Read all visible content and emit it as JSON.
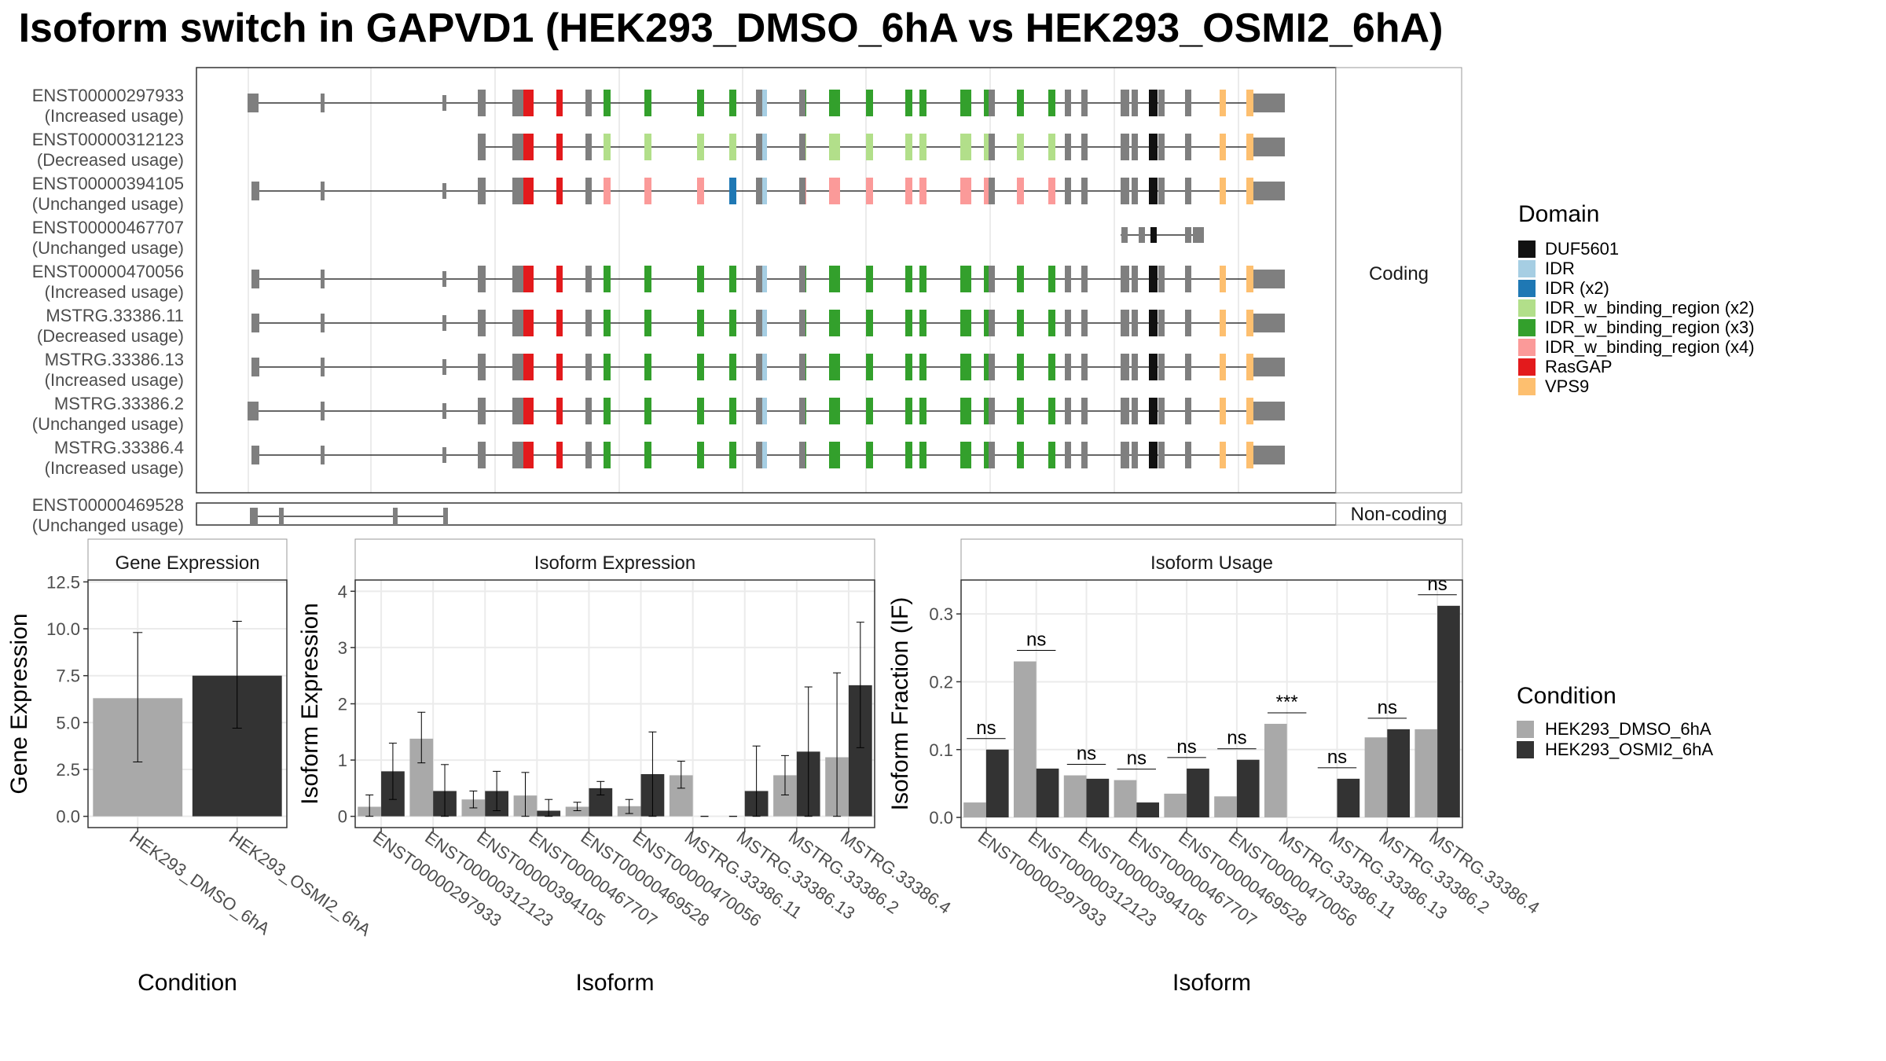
{
  "title": "Isoform switch in GAPVD1 (HEK293_DMSO_6hA vs HEK293_OSMI2_6hA)",
  "colors": {
    "intron": "#333333",
    "other": "#7f7f7f",
    "DUF5601": "#111111",
    "IDR": "#a6cee3",
    "IDR (x2)": "#1f78b4",
    "IDR_w_binding_region (x2)": "#b2df8a",
    "IDR_w_binding_region (x3)": "#33a02c",
    "IDR_w_binding_region (x4)": "#fb9a99",
    "RasGAP": "#e31a1c",
    "VPS9": "#fdbf6f",
    "cond1": "#a9a9a9",
    "cond2": "#333333",
    "panelBorder": "#333333",
    "grid": "#ebebeb"
  },
  "transcripts": {
    "facet_coding": "Coding",
    "facet_noncoding": "Non-coding",
    "coding": [
      {
        "id": "ENST00000297933",
        "usage": "(Increased usage)",
        "start": 0,
        "tail": 0,
        "five": 1
      },
      {
        "id": "ENST00000312123",
        "usage": "(Decreased usage)",
        "start": 3,
        "tail": 0,
        "five": 0
      },
      {
        "id": "ENST00000394105",
        "usage": "(Unchanged usage)",
        "start": 0,
        "tail": 0,
        "five": 0
      },
      {
        "id": "ENST00000467707",
        "usage": "(Unchanged usage)",
        "start": 0,
        "tail": 1,
        "five": 0
      },
      {
        "id": "ENST00000470056",
        "usage": "(Increased usage)",
        "start": 0,
        "tail": 0,
        "five": 0
      },
      {
        "id": "MSTRG.33386.11",
        "usage": "(Decreased usage)",
        "start": 0,
        "tail": 0,
        "five": 0
      },
      {
        "id": "MSTRG.33386.13",
        "usage": "(Increased usage)",
        "start": 0,
        "tail": 0,
        "five": 0
      },
      {
        "id": "MSTRG.33386.2",
        "usage": "(Unchanged usage)",
        "start": 0,
        "tail": 0,
        "five": 1
      },
      {
        "id": "MSTRG.33386.4",
        "usage": "(Increased usage)",
        "start": 0,
        "tail": 0,
        "five": 0
      }
    ],
    "noncoding": [
      {
        "id": "ENST00000469528",
        "usage": "(Unchanged usage)"
      }
    ]
  },
  "legend_domain": {
    "title": "Domain",
    "items": [
      "DUF5601",
      "IDR",
      "IDR (x2)",
      "IDR_w_binding_region (x2)",
      "IDR_w_binding_region (x3)",
      "IDR_w_binding_region (x4)",
      "RasGAP",
      "VPS9"
    ]
  },
  "legend_condition": {
    "title": "Condition",
    "items": [
      "HEK293_DMSO_6hA",
      "HEK293_OSMI2_6hA"
    ]
  },
  "chart_data": [
    {
      "type": "bar",
      "title": "Gene Expression",
      "xlabel": "Condition",
      "ylabel": "Gene Expression",
      "ylim": [
        -0.6,
        12.6
      ],
      "yticks": [
        "0.0",
        "2.5",
        "5.0",
        "7.5",
        "10.0",
        "12.5"
      ],
      "categories": [
        "HEK293_DMSO_6hA",
        "HEK293_OSMI2_6hA"
      ],
      "values": [
        6.3,
        7.5
      ],
      "err_low": [
        2.9,
        4.7
      ],
      "err_high": [
        9.8,
        10.4
      ]
    },
    {
      "type": "bar",
      "title": "Isoform Expression",
      "xlabel": "Isoform",
      "ylabel": "Isoform Expression",
      "ylim": [
        -0.2,
        4.2
      ],
      "yticks": [
        "0",
        "1",
        "2",
        "3",
        "4"
      ],
      "categories": [
        "ENST00000297933",
        "ENST00000312123",
        "ENST00000394105",
        "ENST00000467707",
        "ENST00000469528",
        "ENST00000470056",
        "MSTRG.33386.11",
        "MSTRG.33386.13",
        "MSTRG.33386.2",
        "MSTRG.33386.4"
      ],
      "series": [
        {
          "name": "HEK293_DMSO_6hA",
          "values": [
            0.17,
            1.38,
            0.3,
            0.37,
            0.17,
            0.18,
            0.73,
            0.0,
            0.73,
            1.05
          ],
          "err_low": [
            0.0,
            0.95,
            0.15,
            0.0,
            0.1,
            0.05,
            0.5,
            0.0,
            0.38,
            0.0
          ],
          "err_high": [
            0.38,
            1.85,
            0.45,
            0.78,
            0.25,
            0.3,
            0.98,
            0.0,
            1.08,
            2.55
          ]
        },
        {
          "name": "HEK293_OSMI2_6hA",
          "values": [
            0.8,
            0.45,
            0.45,
            0.1,
            0.5,
            0.75,
            0.0,
            0.45,
            1.15,
            2.33
          ],
          "err_low": [
            0.3,
            0.0,
            0.1,
            0.0,
            0.38,
            0.0,
            0.0,
            0.0,
            0.0,
            1.22
          ],
          "err_high": [
            1.3,
            0.92,
            0.8,
            0.3,
            0.62,
            1.5,
            0.0,
            1.25,
            2.3,
            3.45
          ]
        }
      ]
    },
    {
      "type": "bar",
      "title": "Isoform Usage",
      "xlabel": "Isoform",
      "ylabel": "Isoform Fraction (IF)",
      "ylim": [
        -0.015,
        0.35
      ],
      "yticks": [
        "0.0",
        "0.1",
        "0.2",
        "0.3"
      ],
      "categories": [
        "ENST00000297933",
        "ENST00000312123",
        "ENST00000394105",
        "ENST00000467707",
        "ENST00000469528",
        "ENST00000470056",
        "MSTRG.33386.11",
        "MSTRG.33386.13",
        "MSTRG.33386.2",
        "MSTRG.33386.4"
      ],
      "series": [
        {
          "name": "HEK293_DMSO_6hA",
          "values": [
            0.022,
            0.23,
            0.062,
            0.055,
            0.035,
            0.031,
            0.138,
            0.0,
            0.118,
            0.13
          ]
        },
        {
          "name": "HEK293_OSMI2_6hA",
          "values": [
            0.1,
            0.072,
            0.057,
            0.022,
            0.072,
            0.085,
            0.0,
            0.057,
            0.13,
            0.312
          ]
        }
      ],
      "significance": [
        "ns",
        "ns",
        "ns",
        "ns",
        "ns",
        "ns",
        "***",
        "ns",
        "ns",
        "ns"
      ]
    }
  ]
}
